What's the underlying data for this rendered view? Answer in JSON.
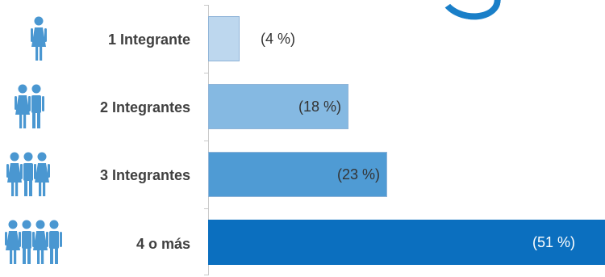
{
  "chart_data": {
    "type": "bar",
    "orientation": "horizontal",
    "categories": [
      "1 Integrante",
      "2 Integrantes",
      "3 Integrantes",
      "4 o más"
    ],
    "values": [
      4,
      18,
      23,
      51
    ],
    "value_labels": [
      "(4 %)",
      "(18 %)",
      "(23 %)",
      "(51 %)"
    ],
    "persons_per_row": [
      1,
      2,
      3,
      4
    ],
    "xlim": [
      0,
      51
    ],
    "bar_colors": [
      "#bdd7ee",
      "#85b9e2",
      "#4f9bd4",
      "#0b6fbf"
    ],
    "bar_border": "#8fb4d8",
    "label_color_dark": "#333333",
    "label_color_light": "#ffffff",
    "icon_color": "#4a97d1",
    "accent": "#1a7fc8",
    "grid": false,
    "legend": "none"
  }
}
